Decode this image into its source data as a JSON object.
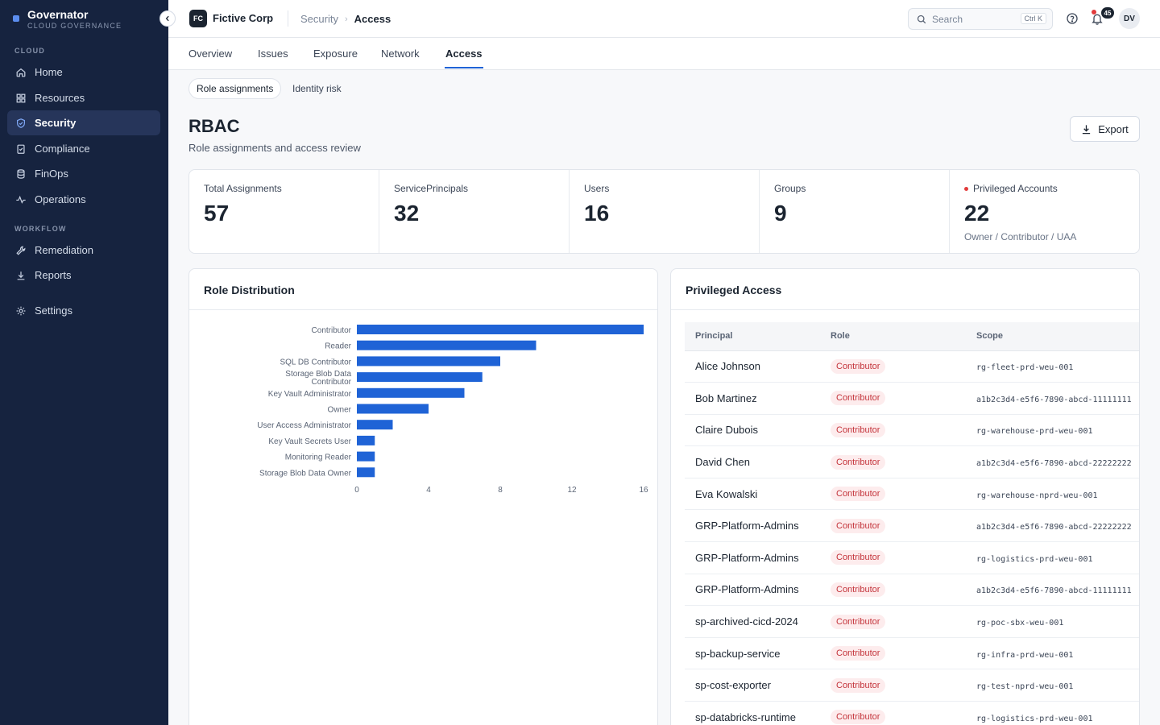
{
  "app": {
    "name": "Governator",
    "subtitle": "CLOUD GOVERNANCE"
  },
  "sidebar": {
    "sections": [
      {
        "label": "CLOUD"
      },
      {
        "label": "WORKFLOW"
      }
    ],
    "items": [
      {
        "label": "Home",
        "icon": "home-icon",
        "active": false
      },
      {
        "label": "Resources",
        "icon": "grid-icon",
        "active": false
      },
      {
        "label": "Security",
        "icon": "shield-icon",
        "active": true
      },
      {
        "label": "Compliance",
        "icon": "clipboard-check-icon",
        "active": false
      },
      {
        "label": "FinOps",
        "icon": "database-icon",
        "active": false
      },
      {
        "label": "Operations",
        "icon": "activity-icon",
        "active": false
      },
      {
        "label": "Remediation",
        "icon": "wrench-icon",
        "active": false
      },
      {
        "label": "Reports",
        "icon": "download-icon",
        "active": false
      },
      {
        "label": "Settings",
        "icon": "gear-icon",
        "active": false
      }
    ]
  },
  "topbar": {
    "org_initials": "FC",
    "org_name": "Fictive Corp",
    "breadcrumb": [
      "Security",
      "Access"
    ],
    "search_placeholder": "Search",
    "search_shortcut": "Ctrl K",
    "notification_count": "45",
    "user_initials": "DV"
  },
  "tabs": [
    {
      "label": "Overview",
      "active": false
    },
    {
      "label": "Issues",
      "active": false
    },
    {
      "label": "Exposure",
      "active": false
    },
    {
      "label": "Network",
      "active": false
    },
    {
      "label": "Access",
      "active": true
    }
  ],
  "subtabs": [
    {
      "label": "Role assignments",
      "active": true
    },
    {
      "label": "Identity risk",
      "active": false
    }
  ],
  "page": {
    "title": "RBAC",
    "subtitle": "Role assignments and access review",
    "export_label": "Export"
  },
  "stats": [
    {
      "label": "Total Assignments",
      "value": "57",
      "note": ""
    },
    {
      "label": "ServicePrincipals",
      "value": "32",
      "note": ""
    },
    {
      "label": "Users",
      "value": "16",
      "note": ""
    },
    {
      "label": "Groups",
      "value": "9",
      "note": ""
    },
    {
      "label": "Privileged Accounts",
      "value": "22",
      "note": "Owner / Contributor / UAA"
    }
  ],
  "role_distribution": {
    "title": "Role Distribution",
    "bar_color": "#1f63d6"
  },
  "chart_data": {
    "type": "bar",
    "orientation": "horizontal",
    "categories": [
      "Contributor",
      "Reader",
      "SQL DB Contributor",
      "Storage Blob Data Contributor",
      "Key Vault Administrator",
      "Owner",
      "User Access Administrator",
      "Key Vault Secrets User",
      "Monitoring Reader",
      "Storage Blob Data Owner"
    ],
    "category_lines": [
      [
        "Contributor"
      ],
      [
        "Reader"
      ],
      [
        "SQL DB Contributor"
      ],
      [
        "Storage Blob Data",
        "Contributor"
      ],
      [
        "Key Vault Administrator"
      ],
      [
        "Owner"
      ],
      [
        "User Access Administrator"
      ],
      [
        "Key Vault Secrets User"
      ],
      [
        "Monitoring Reader"
      ],
      [
        "Storage Blob Data Owner"
      ]
    ],
    "values": [
      16,
      10,
      8,
      7,
      6,
      4,
      2,
      1,
      1,
      1
    ],
    "xticks": [
      "0",
      "4",
      "8",
      "12",
      "16"
    ],
    "xlim": [
      0,
      16
    ],
    "title": "",
    "xlabel": "",
    "ylabel": ""
  },
  "privileged_access": {
    "title": "Privileged Access",
    "columns": [
      "Principal",
      "Role",
      "Scope"
    ],
    "rows": [
      {
        "principal": "Alice Johnson",
        "role": "Contributor",
        "scope": "rg-fleet-prd-weu-001"
      },
      {
        "principal": "Bob Martinez",
        "role": "Contributor",
        "scope": "a1b2c3d4-e5f6-7890-abcd-11111111"
      },
      {
        "principal": "Claire Dubois",
        "role": "Contributor",
        "scope": "rg-warehouse-prd-weu-001"
      },
      {
        "principal": "David Chen",
        "role": "Contributor",
        "scope": "a1b2c3d4-e5f6-7890-abcd-22222222"
      },
      {
        "principal": "Eva Kowalski",
        "role": "Contributor",
        "scope": "rg-warehouse-nprd-weu-001"
      },
      {
        "principal": "GRP-Platform-Admins",
        "role": "Contributor",
        "scope": "a1b2c3d4-e5f6-7890-abcd-22222222"
      },
      {
        "principal": "GRP-Platform-Admins",
        "role": "Contributor",
        "scope": "rg-logistics-prd-weu-001"
      },
      {
        "principal": "GRP-Platform-Admins",
        "role": "Contributor",
        "scope": "a1b2c3d4-e5f6-7890-abcd-11111111"
      },
      {
        "principal": "sp-archived-cicd-2024",
        "role": "Contributor",
        "scope": "rg-poc-sbx-weu-001"
      },
      {
        "principal": "sp-backup-service",
        "role": "Contributor",
        "scope": "rg-infra-prd-weu-001"
      },
      {
        "principal": "sp-cost-exporter",
        "role": "Contributor",
        "scope": "rg-test-nprd-weu-001"
      },
      {
        "principal": "sp-databricks-runtime",
        "role": "Contributor",
        "scope": "rg-logistics-prd-weu-001"
      }
    ]
  }
}
